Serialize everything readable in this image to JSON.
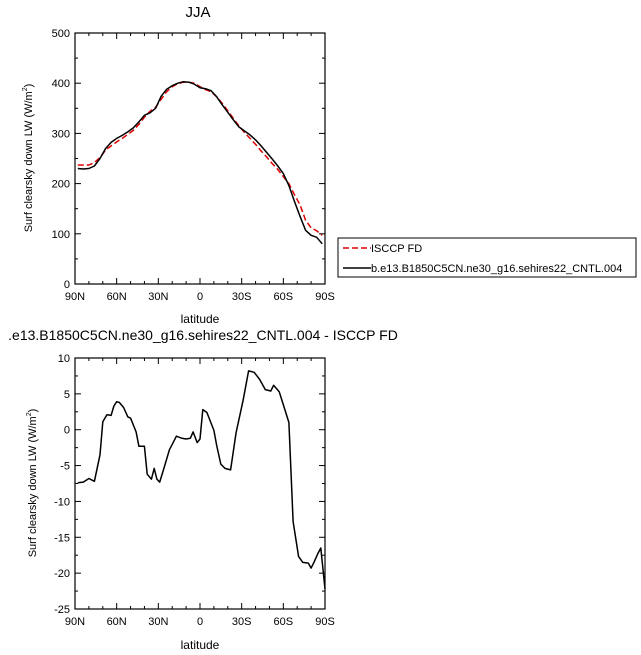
{
  "chart_data": [
    {
      "type": "line",
      "title": "JJA",
      "xlabel": "latitude",
      "ylabel": "Surf clearsky down LW (W/m",
      "ylabel_sup": "2",
      "ylabel_close": ")",
      "xlim": [
        90,
        -90
      ],
      "ylim": [
        0,
        500
      ],
      "xticks": [
        90,
        60,
        30,
        0,
        -30,
        -60,
        -90
      ],
      "xtick_labels": [
        "90N",
        "60N",
        "30N",
        "0",
        "30S",
        "60S",
        "90S"
      ],
      "yticks": [
        0,
        100,
        200,
        300,
        400,
        500
      ],
      "ytick_labels": [
        "0",
        "100",
        "200",
        "300",
        "400",
        "500"
      ],
      "grid": false,
      "legend_position": "right",
      "series": [
        {
          "name": "ISCCP FD",
          "color": "#dd0000",
          "dash": "dashed",
          "x": [
            88,
            84,
            80,
            76,
            72,
            68,
            64,
            60,
            56,
            52,
            48,
            44,
            40,
            36,
            32,
            28,
            24,
            20,
            16,
            12,
            8,
            4,
            0,
            -4,
            -8,
            -12,
            -16,
            -20,
            -24,
            -28,
            -32,
            -36,
            -40,
            -44,
            -48,
            -52,
            -56,
            -60,
            -64,
            -68,
            -72,
            -76,
            -80,
            -84,
            -88
          ],
          "y": [
            237,
            237,
            237,
            242,
            252,
            267,
            275,
            283,
            290,
            298,
            306,
            318,
            332,
            344,
            352,
            368,
            383,
            393,
            399,
            402,
            402,
            400,
            393,
            387,
            383,
            373,
            360,
            345,
            330,
            315,
            302,
            290,
            278,
            265,
            253,
            240,
            228,
            214,
            200,
            178,
            158,
            127,
            112,
            106,
            97
          ]
        },
        {
          "name": "b.e13.B1850C5CN.ne30_g16.sehires22_CNTL.004",
          "color": "#000000",
          "dash": "solid",
          "x": [
            88,
            84,
            80,
            76,
            72,
            68,
            64,
            60,
            56,
            52,
            48,
            44,
            40,
            36,
            32,
            28,
            24,
            20,
            16,
            12,
            8,
            4,
            0,
            -4,
            -8,
            -12,
            -16,
            -20,
            -24,
            -28,
            -32,
            -36,
            -40,
            -44,
            -48,
            -52,
            -56,
            -60,
            -64,
            -68,
            -72,
            -76,
            -80,
            -84,
            -88
          ],
          "y": [
            230,
            229,
            230,
            235,
            250,
            270,
            282,
            290,
            296,
            303,
            311,
            323,
            336,
            341,
            350,
            374,
            388,
            395,
            400,
            403,
            402,
            398,
            391,
            389,
            385,
            373,
            357,
            342,
            327,
            313,
            305,
            297,
            287,
            275,
            262,
            249,
            235,
            220,
            196,
            165,
            135,
            107,
            97,
            93,
            80
          ]
        }
      ]
    },
    {
      "type": "line",
      "title": ".e13.B1850C5CN.ne30_g16.sehires22_CNTL.004 - ISCCP FD",
      "xlabel": "latitude",
      "ylabel": "Surf clearsky down LW (W/m",
      "ylabel_sup": "2",
      "ylabel_close": ")",
      "xlim": [
        90,
        -90
      ],
      "ylim": [
        -25,
        10
      ],
      "xticks": [
        90,
        60,
        30,
        0,
        -30,
        -60,
        -90
      ],
      "xtick_labels": [
        "90N",
        "60N",
        "30N",
        "0",
        "30S",
        "60S",
        "90S"
      ],
      "yticks": [
        10,
        5,
        0,
        -5,
        -10,
        -15,
        -20,
        -25
      ],
      "ytick_labels": [
        "10",
        "5",
        "0",
        "-5",
        "-10",
        "-15",
        "-20",
        "-25"
      ],
      "grid": false,
      "series": [
        {
          "color": "#000000",
          "dash": "solid",
          "x": [
            88,
            84,
            80,
            76,
            72,
            70,
            67,
            64,
            62,
            60,
            58,
            55,
            52,
            50,
            46,
            44,
            40,
            38,
            35,
            33,
            31,
            29,
            26,
            22,
            17,
            13,
            10,
            7,
            5,
            2,
            0,
            -2,
            -5,
            -10,
            -12,
            -15,
            -18,
            -22,
            -26,
            -31,
            -35,
            -39,
            -43,
            -47,
            -51,
            -53,
            -57,
            -60,
            -64,
            -67,
            -71,
            -74,
            -78,
            -80,
            -82,
            -85,
            -87,
            -90
          ],
          "y": [
            -7.4,
            -7.3,
            -6.8,
            -7.2,
            -3.5,
            1.1,
            2.1,
            2.0,
            3.3,
            3.9,
            3.8,
            3.1,
            1.8,
            1.6,
            -0.3,
            -2.3,
            -2.3,
            -6.2,
            -6.9,
            -5.4,
            -6.9,
            -7.3,
            -5.4,
            -2.8,
            -0.9,
            -1.2,
            -1.3,
            -1.2,
            -0.3,
            -1.8,
            -1.3,
            2.8,
            2.4,
            -0.1,
            -2.2,
            -4.8,
            -5.4,
            -5.6,
            -0.4,
            4.1,
            8.2,
            8.0,
            7.0,
            5.6,
            5.4,
            6.2,
            5.3,
            3.5,
            1.0,
            -12.8,
            -17.7,
            -18.5,
            -18.6,
            -19.3,
            -18.5,
            -17.2,
            -16.5,
            -22.2
          ]
        }
      ]
    }
  ]
}
